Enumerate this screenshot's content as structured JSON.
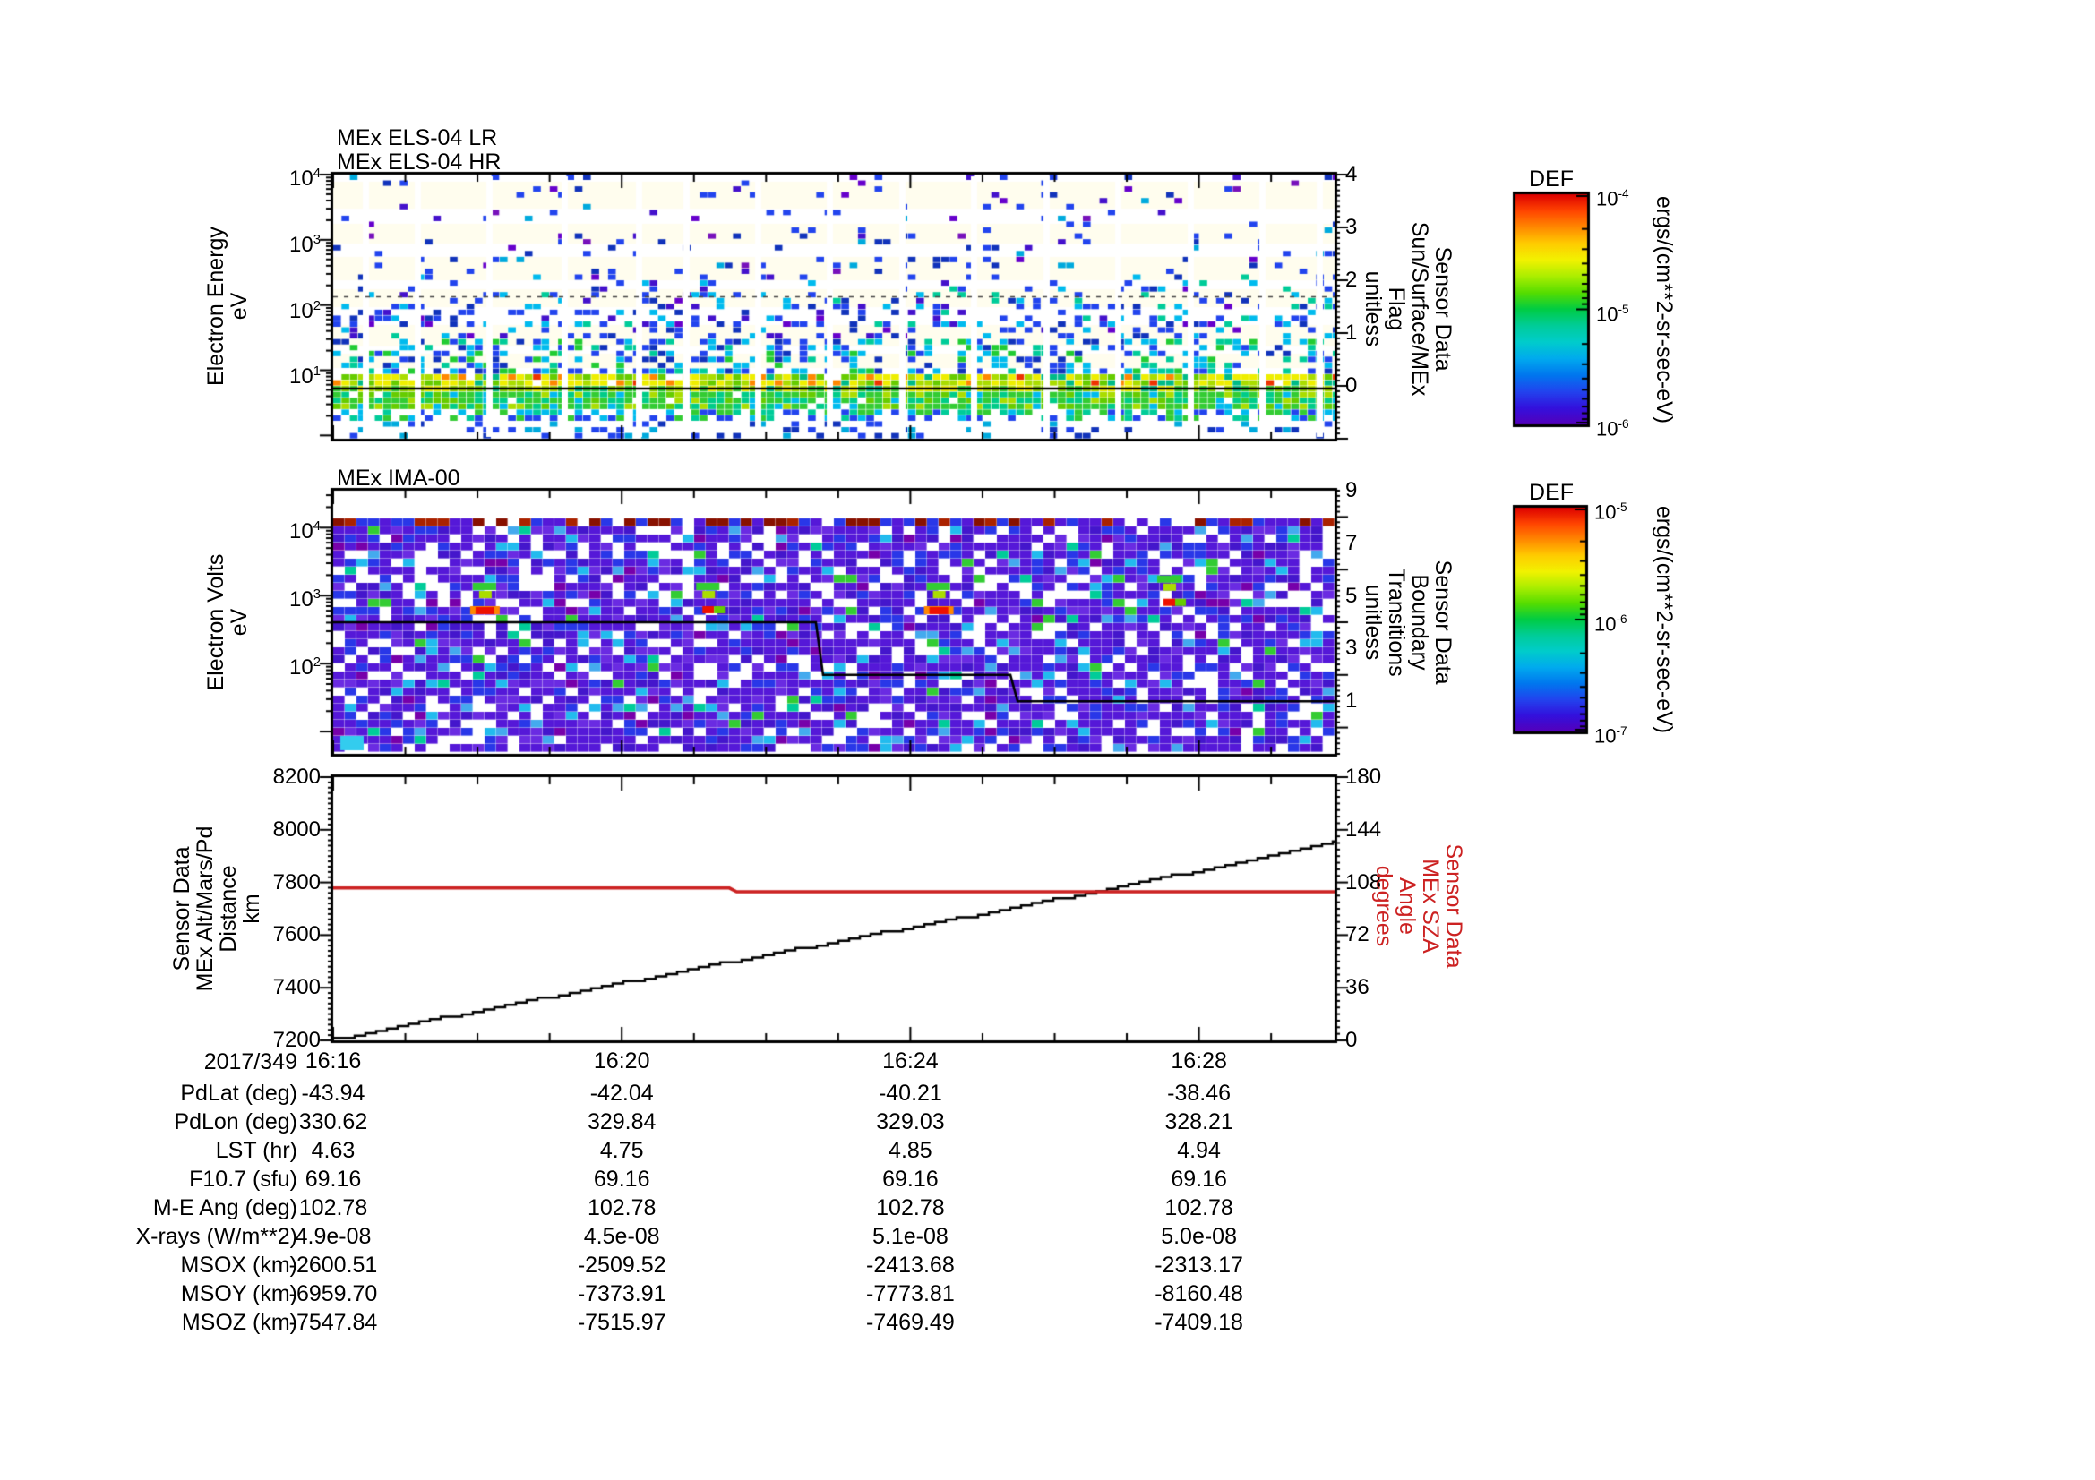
{
  "x_axis": {
    "date_label": "2017/349",
    "labeled_ticks": [
      "16:16",
      "16:20",
      "16:24",
      "16:28"
    ],
    "tick_offsets_min": [
      0,
      4,
      8,
      12
    ],
    "minor_tick_minutes": 1,
    "range": [
      "16:16",
      "16:29.9"
    ]
  },
  "chart_data": [
    {
      "id": "els_spectrogram",
      "type": "heatmap",
      "titles": [
        "MEx ELS-04 LR",
        "MEx ELS-04 HR"
      ],
      "ylabel_lines": [
        "Electron Energy",
        "eV"
      ],
      "yscale": "log",
      "ylim_eV": [
        1,
        10000
      ],
      "ytick_exponents": [
        4,
        3,
        2,
        1
      ],
      "right_axis": {
        "label_lines": [
          "Sensor Data",
          "Sun/Surface/MEx",
          "Flag",
          "unitless"
        ],
        "ticks": [
          4,
          3,
          2,
          1,
          0
        ],
        "range": [
          -1,
          4
        ],
        "flag_line_value": 0
      },
      "colorbar": {
        "title": "DEF",
        "tick_exponents": [
          -4,
          -5,
          -6
        ],
        "units": "ergs/(cm**2-sr-sec-eV)"
      },
      "features": {
        "intense_band_eV": [
          6,
          25
        ],
        "dashed_line_eV": 150,
        "data_gap_interval_min": 1,
        "description": "sparse blue/cyan scatter above 100 eV, dense green-yellow-orange flux band near 10 eV with periodic white telemetry gaps"
      }
    },
    {
      "id": "ima_spectrogram",
      "type": "heatmap",
      "title": "MEx IMA-00",
      "ylabel_lines": [
        "Electron Volts",
        "eV"
      ],
      "yscale": "log",
      "ylim_eV": [
        4.7,
        35000
      ],
      "ytick_exponents": [
        4,
        3,
        2
      ],
      "right_axis": {
        "label_lines": [
          "Sensor Data",
          "Boundary",
          "Transitions",
          "unitless"
        ],
        "ticks": [
          9,
          7,
          5,
          3,
          1
        ],
        "range": [
          -1,
          9
        ]
      },
      "colorbar": {
        "title": "DEF",
        "tick_exponents": [
          -5,
          -6,
          -7
        ],
        "units": "ergs/(cm**2-sr-sec-eV)"
      },
      "boundary_series": {
        "name": "Boundary Transitions",
        "color": "#000000",
        "points": [
          [
            "16:16",
            4
          ],
          [
            "16:22.7",
            4
          ],
          [
            "16:22.8",
            2
          ],
          [
            "16:25.4",
            2
          ],
          [
            "16:25.5",
            1
          ],
          [
            "16:29.9",
            1
          ]
        ]
      },
      "hotspots": [
        {
          "time": "16:18.1",
          "energy_eV": 700,
          "strength": "strong"
        },
        {
          "time": "16:21.2",
          "energy_eV": 700,
          "strength": "moderate"
        },
        {
          "time": "16:24.4",
          "energy_eV": 700,
          "strength": "strong"
        },
        {
          "time": "16:27.6",
          "energy_eV": 900,
          "strength": "moderate"
        }
      ],
      "features": {
        "description": "dense indigo/blue noise raster with white gaps, maroon saturated top row, periodic red/green ion beam spots near 0.7-1.5 keV"
      }
    },
    {
      "id": "altitude_sza",
      "type": "line",
      "ylabel_lines": [
        "Sensor Data",
        "MEx Alt/Mars/Pd",
        "Distance",
        "km"
      ],
      "ylim_left": [
        7200,
        8200
      ],
      "yticks_left": [
        8200,
        8000,
        7800,
        7600,
        7400,
        7200
      ],
      "right_axis": {
        "label_lines": [
          "Sensor Data",
          "MEx SZA",
          "Angle",
          "degrees"
        ],
        "color": "#CC2222",
        "ticks": [
          180,
          144,
          108,
          72,
          36,
          0
        ],
        "range": [
          0,
          180
        ]
      },
      "series": [
        {
          "name": "MEx Alt/Mars/Pd Distance",
          "axis": "left",
          "color": "#000000",
          "style": "stepped",
          "points": [
            [
              "16:16",
              7205
            ],
            [
              "16:17",
              7259
            ],
            [
              "16:18",
              7313
            ],
            [
              "16:19",
              7367
            ],
            [
              "16:20",
              7420
            ],
            [
              "16:21",
              7473
            ],
            [
              "16:22",
              7526
            ],
            [
              "16:23",
              7578
            ],
            [
              "16:24",
              7630
            ],
            [
              "16:25",
              7682
            ],
            [
              "16:26",
              7736
            ],
            [
              "16:27",
              7790
            ],
            [
              "16:28",
              7846
            ],
            [
              "16:29",
              7903
            ],
            [
              "16:29.9",
              7958
            ]
          ]
        },
        {
          "name": "MEx SZA Angle",
          "axis": "right",
          "color": "#CC2222",
          "style": "step",
          "points": [
            [
              "16:16",
              104.2
            ],
            [
              "16:21.5",
              104.2
            ],
            [
              "16:21.6",
              101.6
            ],
            [
              "16:29.9",
              101.6
            ]
          ]
        }
      ]
    },
    {
      "id": "ephemeris_table",
      "type": "table",
      "date_label": "2017/349",
      "time_columns": [
        "16:16",
        "16:20",
        "16:24",
        "16:28"
      ],
      "rows": [
        {
          "label": "PdLat (deg)",
          "values": [
            "-43.94",
            "-42.04",
            "-40.21",
            "-38.46"
          ]
        },
        {
          "label": "PdLon (deg)",
          "values": [
            "330.62",
            "329.84",
            "329.03",
            "328.21"
          ]
        },
        {
          "label": "LST (hr)",
          "values": [
            "4.63",
            "4.75",
            "4.85",
            "4.94"
          ]
        },
        {
          "label": "F10.7 (sfu)",
          "values": [
            "69.16",
            "69.16",
            "69.16",
            "69.16"
          ]
        },
        {
          "label": "M-E Ang (deg)",
          "values": [
            "102.78",
            "102.78",
            "102.78",
            "102.78"
          ]
        },
        {
          "label": "X-rays (W/m**2)",
          "values": [
            "4.9e-08",
            "4.5e-08",
            "5.1e-08",
            "5.0e-08"
          ]
        },
        {
          "label": "MSOX (km)",
          "values": [
            "-2600.51",
            "-2509.52",
            "-2413.68",
            "-2313.17"
          ]
        },
        {
          "label": "MSOY (km)",
          "values": [
            "-6959.70",
            "-7373.91",
            "-7773.81",
            "-8160.48"
          ]
        },
        {
          "label": "MSOZ (km)",
          "values": [
            "-7547.84",
            "-7515.97",
            "-7469.49",
            "-7409.18"
          ]
        }
      ]
    }
  ],
  "style": {
    "sza_red": "#CC2222",
    "axis_black": "#000000",
    "rainbow_top_to_bottom": [
      "#DD0000",
      "#FF4400",
      "#FF8800",
      "#FFCC00",
      "#F2F200",
      "#AAEE00",
      "#55DD00",
      "#00CC44",
      "#00CC99",
      "#00CCCC",
      "#00AAEE",
      "#0077EE",
      "#2244EE",
      "#3311DD",
      "#5500BB"
    ]
  }
}
